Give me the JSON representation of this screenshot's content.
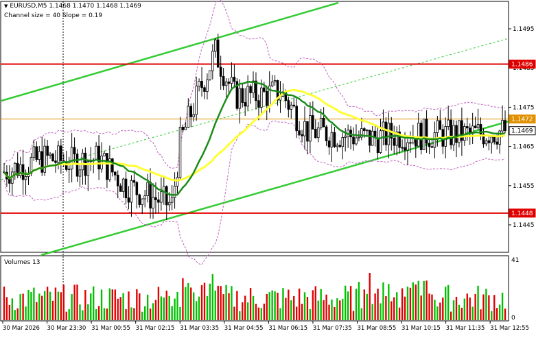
{
  "header": {
    "symbol_line": "EURUSD,M5  1.1468 1.1470 1.1468 1.1469",
    "channel_line": "Channel size = 40 Slope = 0.19"
  },
  "volumes_label": "Volumes 13",
  "price_axis": {
    "min": 1.1438,
    "max": 1.1502,
    "ticks": [
      "1.1495",
      "1.1485",
      "1.1475",
      "1.1465",
      "1.1455",
      "1.1445"
    ]
  },
  "level_labels": [
    {
      "text": "1.1486",
      "value": 1.1486,
      "color": "#e00000"
    },
    {
      "text": "1.1472",
      "value": 1.1472,
      "color": "#e09000"
    },
    {
      "text": "1.1469",
      "value": 1.1469,
      "color": "#ffffff"
    },
    {
      "text": "1.1448",
      "value": 1.1448,
      "color": "#e00000"
    }
  ],
  "volume_axis": {
    "max_label": "41",
    "min_label": "0"
  },
  "time_axis": [
    "30 Mar 2026",
    "30 Mar 23:30",
    "31 Mar 00:55",
    "31 Mar 02:15",
    "31 Mar 03:35",
    "31 Mar 04:55",
    "31 Mar 06:15",
    "31 Mar 07:35",
    "31 Mar 08:55",
    "31 Mar 10:15",
    "31 Mar 11:35",
    "31 Mar 12:55"
  ],
  "colors": {
    "candles": "#000000",
    "ma_green": "#1a8c1a",
    "ma_yellow": "#ffff33",
    "channel": "#33cc33",
    "bands": "#c060c0",
    "resistance": "#e00000",
    "volume_up": "#00c000",
    "volume_down": "#e00000"
  }
}
